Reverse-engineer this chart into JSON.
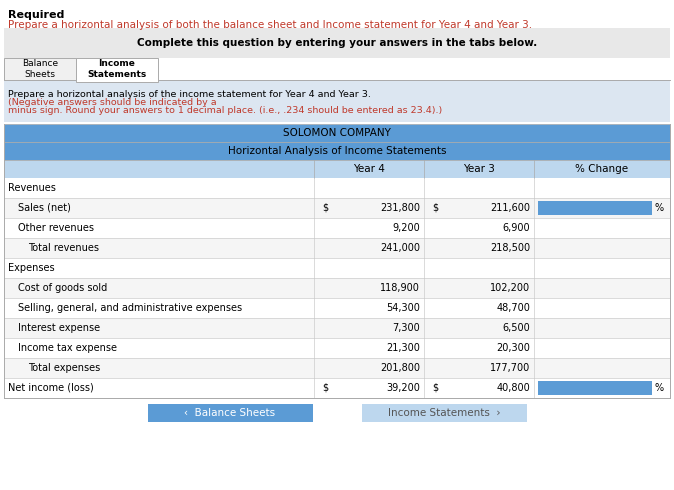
{
  "title_required": "Required",
  "subtitle": "Prepare a horizontal analysis of both the balance sheet and Income statement for Year 4 and Year 3.",
  "instruction_box": "Complete this question by entering your answers in the tabs below.",
  "tab1": "Balance\nSheets",
  "tab2": "Income\nStatements",
  "blue_instruction": "Prepare a horizontal analysis of the income statement for Year 4 and Year 3.",
  "red_instruction1": "(Negative answers should be indicated by a",
  "red_instruction2": "minus sign. Round your answers to 1 decimal place. (i.e., .234 should be entered as 23.4).)",
  "table_title1": "SOLOMON COMPANY",
  "table_title2": "Horizontal Analysis of Income Statements",
  "col_headers": [
    "Year 4",
    "Year 3",
    "% Change"
  ],
  "rows": [
    {
      "label": "Revenues",
      "indent": 0,
      "year4": "",
      "year3": "",
      "pct": "",
      "dollar4": false,
      "dollar3": false
    },
    {
      "label": "Sales (net)",
      "indent": 1,
      "year4": "231,800",
      "year3": "211,600",
      "pct": "%",
      "dollar4": true,
      "dollar3": true
    },
    {
      "label": "Other revenues",
      "indent": 1,
      "year4": "9,200",
      "year3": "6,900",
      "pct": "",
      "dollar4": false,
      "dollar3": false
    },
    {
      "label": "Total revenues",
      "indent": 2,
      "year4": "241,000",
      "year3": "218,500",
      "pct": "",
      "dollar4": false,
      "dollar3": false
    },
    {
      "label": "Expenses",
      "indent": 0,
      "year4": "",
      "year3": "",
      "pct": "",
      "dollar4": false,
      "dollar3": false
    },
    {
      "label": "Cost of goods sold",
      "indent": 1,
      "year4": "118,900",
      "year3": "102,200",
      "pct": "",
      "dollar4": false,
      "dollar3": false
    },
    {
      "label": "Selling, general, and administrative expenses",
      "indent": 1,
      "year4": "54,300",
      "year3": "48,700",
      "pct": "",
      "dollar4": false,
      "dollar3": false
    },
    {
      "label": "Interest expense",
      "indent": 1,
      "year4": "7,300",
      "year3": "6,500",
      "pct": "",
      "dollar4": false,
      "dollar3": false
    },
    {
      "label": "Income tax expense",
      "indent": 1,
      "year4": "21,300",
      "year3": "20,300",
      "pct": "",
      "dollar4": false,
      "dollar3": false
    },
    {
      "label": "Total expenses",
      "indent": 2,
      "year4": "201,800",
      "year3": "177,700",
      "pct": "",
      "dollar4": false,
      "dollar3": false
    },
    {
      "label": "Net income (loss)",
      "indent": 0,
      "year4": "39,200",
      "year3": "40,800",
      "pct": "%",
      "dollar4": true,
      "dollar3": true
    }
  ],
  "header_bg": "#5b9bd5",
  "col_header_bg": "#bdd7ee",
  "input_box_color": "#5b9bd5",
  "button_active_bg": "#5b9bd5",
  "button_inactive_bg": "#bdd7ee",
  "gray_box_bg": "#e8e8e8",
  "light_blue_instruction_bg": "#dce6f1"
}
